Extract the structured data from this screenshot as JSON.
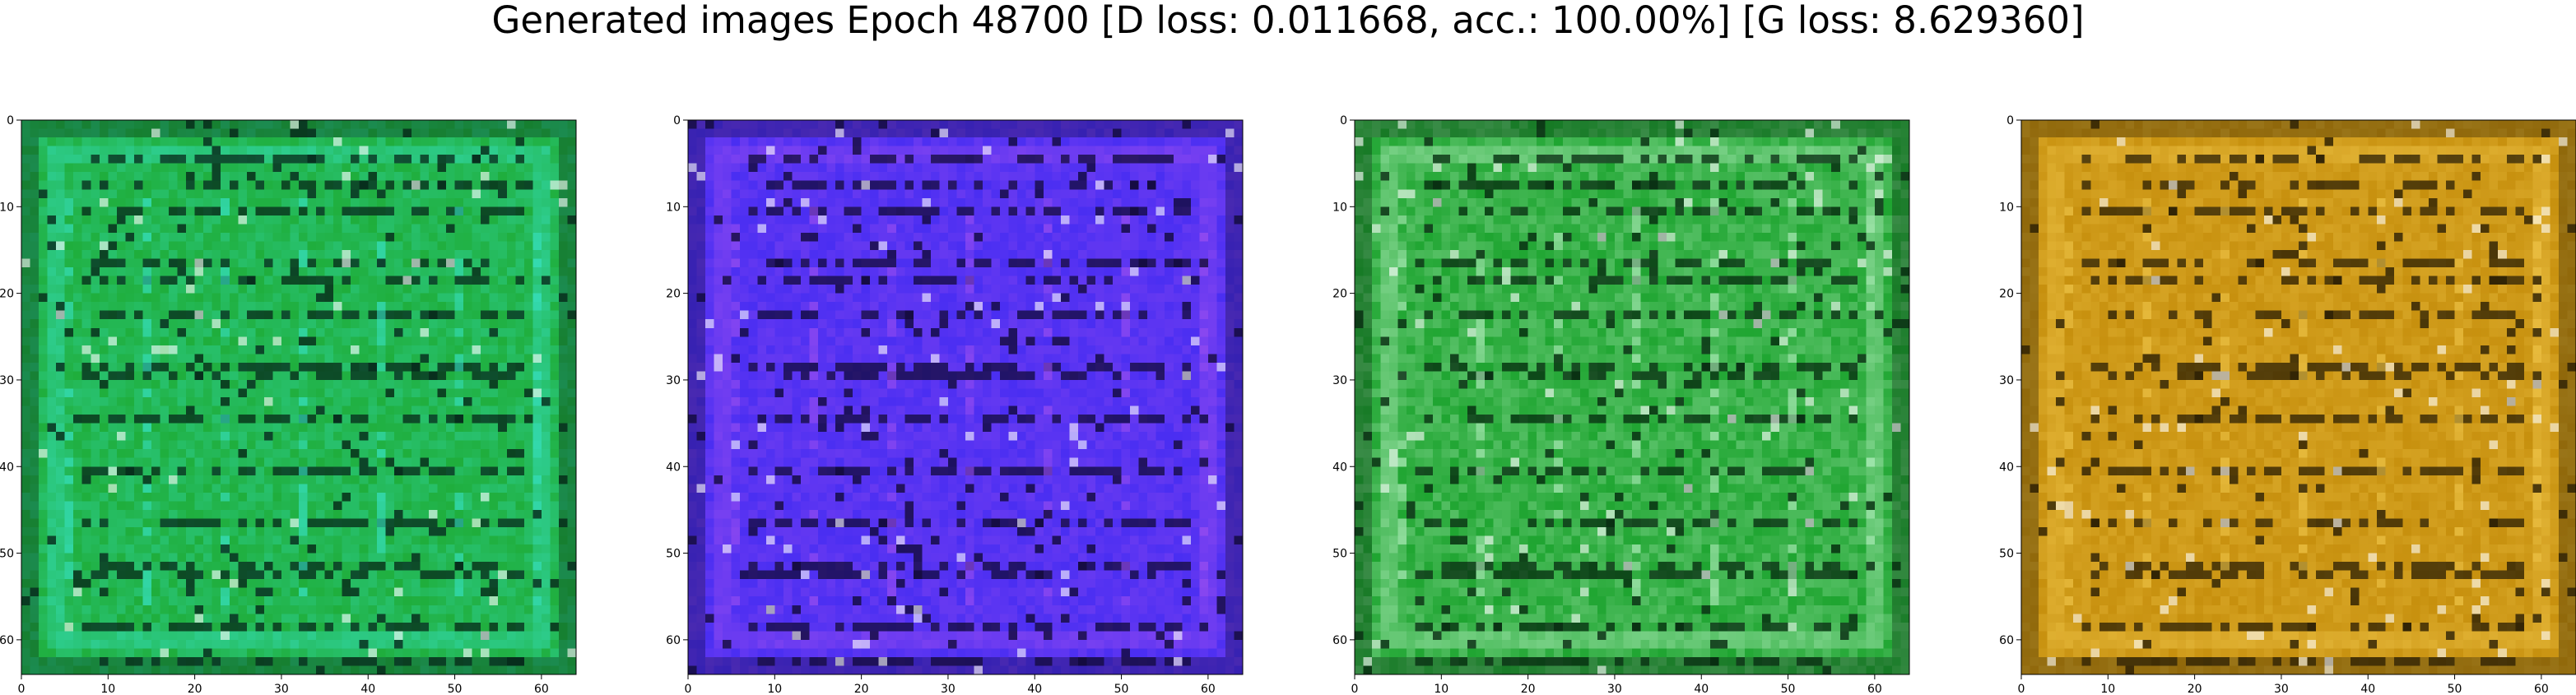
{
  "title": "Generated images Epoch 48700 [D loss: 0.011668, acc.: 100.00%] [G loss: 8.629360]",
  "chart_data": [
    {
      "type": "heatmap",
      "panel": 1,
      "xlim": [
        0,
        64
      ],
      "ylim": [
        64,
        0
      ],
      "xticks": [
        0,
        10,
        20,
        30,
        40,
        50,
        60
      ],
      "yticks": [
        0,
        10,
        20,
        30,
        40,
        50,
        60
      ],
      "xticklabels": [
        "0",
        "10",
        "20",
        "30",
        "40",
        "50",
        "60"
      ],
      "yticklabels": [
        "0",
        "10",
        "20",
        "30",
        "40",
        "50",
        "60"
      ],
      "base_color": "#1fae3c",
      "accent_color": "#38e3c8",
      "dark_color": "#06281a",
      "grid": false
    },
    {
      "type": "heatmap",
      "panel": 2,
      "xlim": [
        0,
        64
      ],
      "ylim": [
        64,
        0
      ],
      "xticks": [
        0,
        10,
        20,
        30,
        40,
        50,
        60
      ],
      "yticks": [
        0,
        10,
        20,
        30,
        40,
        50,
        60
      ],
      "xticklabels": [
        "0",
        "10",
        "20",
        "30",
        "40",
        "50",
        "60"
      ],
      "yticklabels": [
        "0",
        "10",
        "20",
        "30",
        "40",
        "50",
        "60"
      ],
      "base_color": "#4a2ef2",
      "accent_color": "#9a4ef0",
      "dark_color": "#120a3a",
      "grid": false
    },
    {
      "type": "heatmap",
      "panel": 3,
      "xlim": [
        0,
        64
      ],
      "ylim": [
        64,
        0
      ],
      "xticks": [
        0,
        10,
        20,
        30,
        40,
        50,
        60
      ],
      "yticks": [
        0,
        10,
        20,
        30,
        40,
        50,
        60
      ],
      "xticklabels": [
        "0",
        "10",
        "20",
        "30",
        "40",
        "50",
        "60"
      ],
      "yticklabels": [
        "0",
        "10",
        "20",
        "30",
        "40",
        "50",
        "60"
      ],
      "base_color": "#1fa531",
      "accent_color": "#b5efc0",
      "dark_color": "#072a10",
      "grid": false
    },
    {
      "type": "heatmap",
      "panel": 4,
      "xlim": [
        0,
        64
      ],
      "ylim": [
        64,
        0
      ],
      "xticks": [
        0,
        10,
        20,
        30,
        40,
        50,
        60
      ],
      "yticks": [
        0,
        10,
        20,
        30,
        40,
        50,
        60
      ],
      "xticklabels": [
        "0",
        "10",
        "20",
        "30",
        "40",
        "50",
        "60"
      ],
      "yticklabels": [
        "0",
        "10",
        "20",
        "30",
        "40",
        "50",
        "60"
      ],
      "base_color": "#c7900e",
      "accent_color": "#f0c64a",
      "dark_color": "#2a1e04",
      "grid": false
    }
  ]
}
